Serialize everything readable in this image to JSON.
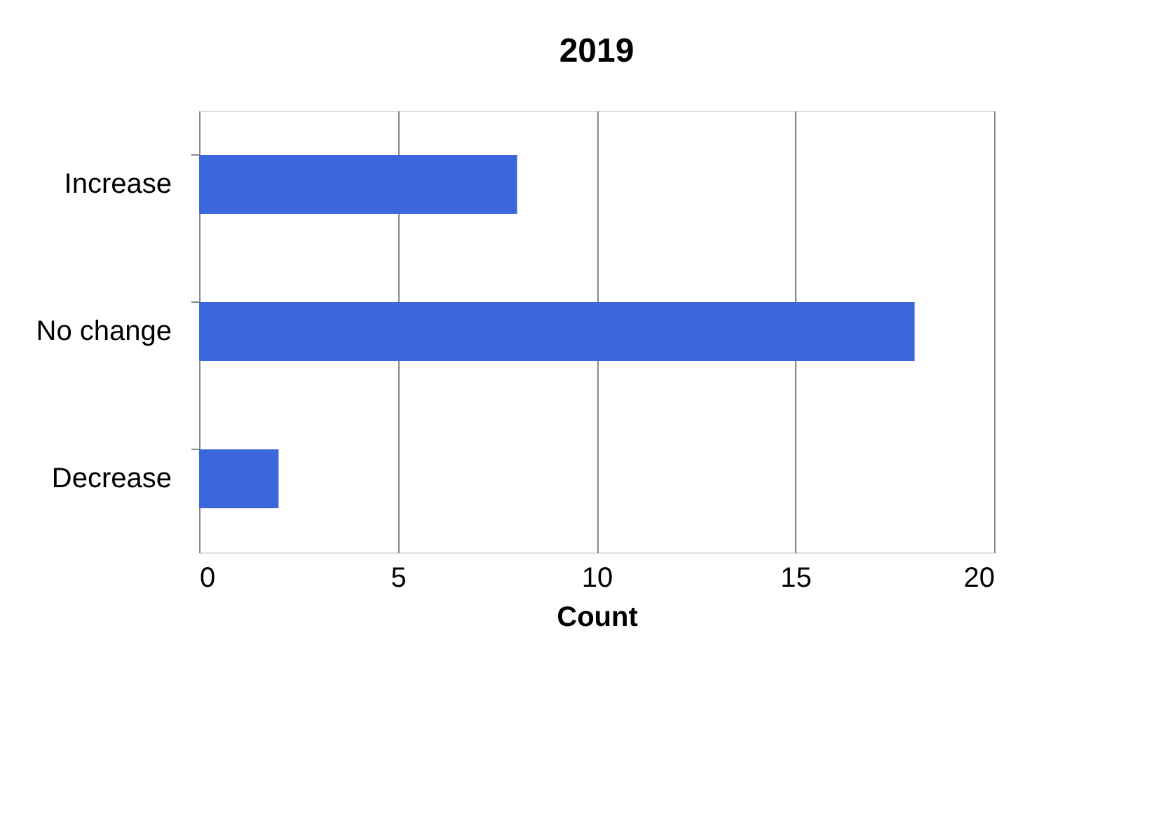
{
  "chart_data": {
    "type": "bar",
    "orientation": "horizontal",
    "title": "2019",
    "xlabel": "Count",
    "categories": [
      "Increase",
      "No change",
      "Decrease"
    ],
    "values": [
      8,
      18,
      2
    ],
    "color": "#3b66dc",
    "xlim": [
      0,
      20
    ],
    "xticks": [
      0,
      5,
      10,
      15,
      20
    ],
    "grid": "x"
  }
}
